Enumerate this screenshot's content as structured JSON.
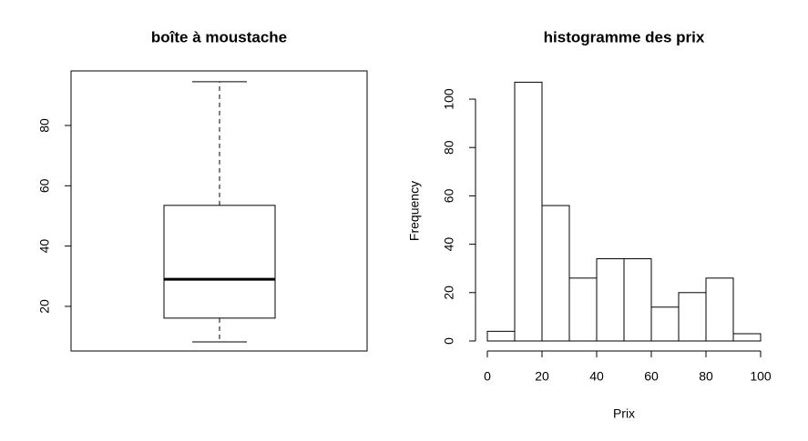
{
  "chart_data": [
    {
      "type": "box",
      "title": "boîte à moustache",
      "boxes": [
        {
          "whislo": 8.2,
          "q1": 16.1,
          "med": 29,
          "q3": 53.5,
          "whishi": 94.5
        }
      ],
      "ylim": [
        5.2,
        98.1
      ],
      "yticks": [
        20,
        40,
        60,
        80
      ]
    },
    {
      "type": "histogram",
      "title": "histogramme des prix",
      "xlabel": "Prix",
      "ylabel": "Frequency",
      "bins": [
        0,
        10,
        20,
        30,
        40,
        50,
        60,
        70,
        80,
        90,
        100
      ],
      "counts": [
        4,
        107,
        56,
        26,
        34,
        34,
        14,
        20,
        26,
        3
      ],
      "xlim": [
        0,
        100
      ],
      "ylim": [
        0,
        107
      ],
      "xticks": [
        0,
        20,
        40,
        60,
        80,
        100
      ],
      "yticks": [
        0,
        20,
        40,
        60,
        80,
        100
      ]
    }
  ]
}
